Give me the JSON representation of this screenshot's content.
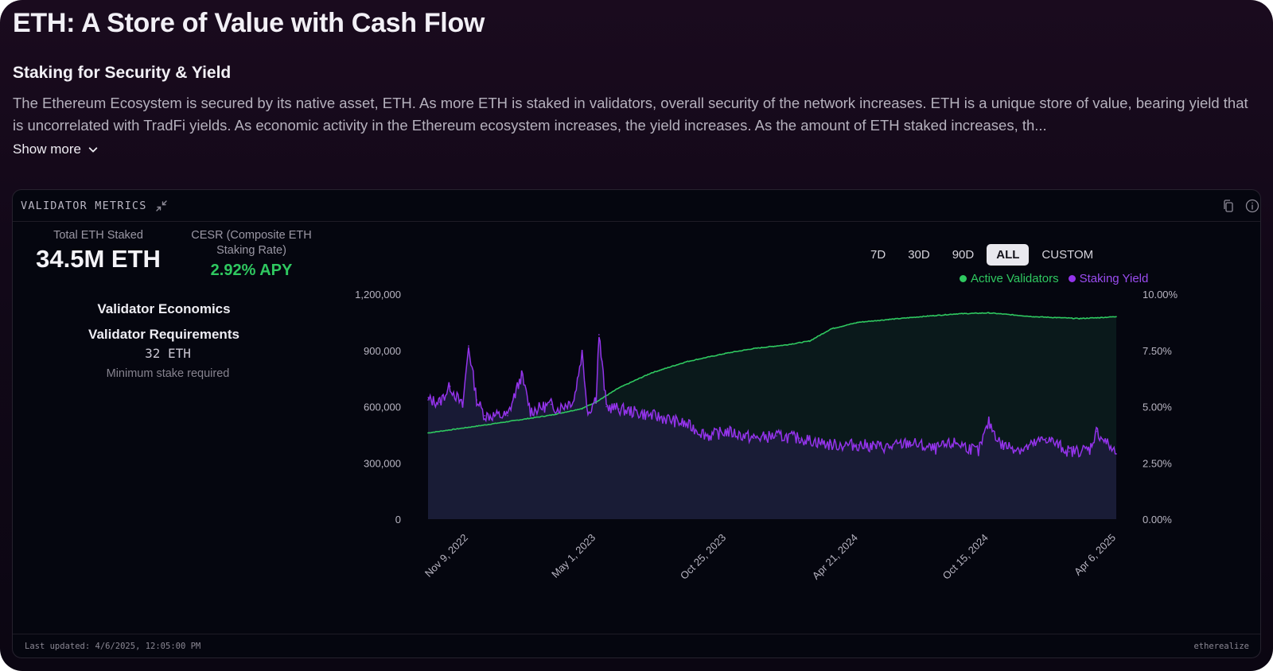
{
  "page": {
    "title": "ETH: A Store of Value with Cash Flow",
    "section_title": "Staking for Security & Yield",
    "description": "The Ethereum Ecosystem is secured by its native asset, ETH. As more ETH is staked in validators, overall security of the network increases. ETH is a unique store of value, bearing yield that is uncorrelated with TradFi yields. As economic activity in the Ethereum ecosystem increases, the yield increases. As the amount of ETH staked increases, th...",
    "show_more_label": "Show more"
  },
  "card": {
    "title": "VALIDATOR METRICS",
    "icons": [
      "collapse-icon",
      "copy-icon",
      "info-icon"
    ]
  },
  "stats": {
    "total_staked_label": "Total ETH Staked",
    "total_staked_value": "34.5M ETH",
    "cesr_label_line1": "CESR (Composite ETH",
    "cesr_label_line2": "Staking Rate)",
    "cesr_value": "2.92% APY"
  },
  "economics": {
    "title": "Validator Economics",
    "requirements_title": "Validator Requirements",
    "requirement_value": "32 ETH",
    "requirement_note": "Minimum stake required"
  },
  "range_buttons": [
    "7D",
    "30D",
    "90D",
    "ALL",
    "CUSTOM"
  ],
  "range_selected": "ALL",
  "footer": {
    "last_updated": "Last updated: 4/6/2025, 12:05:00 PM",
    "brand": "etherealize"
  },
  "colors": {
    "validators": "#2fc860",
    "yield": "#9333ea",
    "validators_fill": "#0b1a1c",
    "yield_fill": "#1b1d3a",
    "axis_text": "#b8b5c2"
  },
  "chart_data": {
    "type": "area",
    "left_axis_ticks": [
      "0",
      "300,000",
      "600,000",
      "900,000",
      "1,200,000"
    ],
    "right_axis_ticks": [
      "0.00%",
      "2.50%",
      "5.00%",
      "7.50%",
      "10.00%"
    ],
    "left_ylim": [
      0,
      1200000
    ],
    "right_ylim": [
      0,
      10
    ],
    "x_tick_labels": [
      "Nov 9, 2022",
      "May 1, 2023",
      "Oct 25, 2023",
      "Apr 21, 2024",
      "Oct 15, 2024",
      "Apr 6, 2025"
    ],
    "x_range": [
      "2022-09-15",
      "2025-04-06"
    ],
    "legend_position": "top-right",
    "series": [
      {
        "name": "Active Validators",
        "axis": "left",
        "x": [
          "2022-09-15",
          "2022-11-09",
          "2023-01-01",
          "2023-03-01",
          "2023-04-12",
          "2023-05-01",
          "2023-06-01",
          "2023-07-15",
          "2023-09-01",
          "2023-10-25",
          "2023-12-01",
          "2024-01-15",
          "2024-02-15",
          "2024-03-15",
          "2024-04-21",
          "2024-06-01",
          "2024-07-15",
          "2024-09-01",
          "2024-10-15",
          "2024-11-15",
          "2024-12-15",
          "2025-01-15",
          "2025-02-15",
          "2025-03-15",
          "2025-04-06"
        ],
        "values": [
          460000,
          490000,
          520000,
          555000,
          590000,
          625000,
          700000,
          780000,
          840000,
          885000,
          910000,
          930000,
          950000,
          1015000,
          1050000,
          1065000,
          1080000,
          1095000,
          1100000,
          1090000,
          1080000,
          1075000,
          1070000,
          1075000,
          1080000
        ]
      },
      {
        "name": "Staking Yield",
        "axis": "right",
        "x": [
          "2022-09-15",
          "2022-10-01",
          "2022-10-15",
          "2022-11-01",
          "2022-11-09",
          "2022-11-20",
          "2022-12-01",
          "2023-01-01",
          "2023-01-20",
          "2023-02-01",
          "2023-03-01",
          "2023-03-10",
          "2023-04-01",
          "2023-04-12",
          "2023-04-20",
          "2023-05-01",
          "2023-05-05",
          "2023-05-15",
          "2023-06-01",
          "2023-07-01",
          "2023-08-01",
          "2023-09-01",
          "2023-10-01",
          "2023-10-25",
          "2023-12-01",
          "2024-01-01",
          "2024-02-01",
          "2024-03-01",
          "2024-03-15",
          "2024-04-21",
          "2024-06-01",
          "2024-07-01",
          "2024-08-01",
          "2024-09-01",
          "2024-10-01",
          "2024-10-15",
          "2024-11-01",
          "2024-12-01",
          "2025-01-01",
          "2025-02-01",
          "2025-03-01",
          "2025-03-10",
          "2025-04-06"
        ],
        "values": [
          5.3,
          5.2,
          5.9,
          5.0,
          7.7,
          5.3,
          4.6,
          4.6,
          6.4,
          4.8,
          5.1,
          4.9,
          5.3,
          7.4,
          4.7,
          5.4,
          8.2,
          5.0,
          4.9,
          4.7,
          4.5,
          4.2,
          3.7,
          3.9,
          3.6,
          3.7,
          3.6,
          3.4,
          3.3,
          3.3,
          3.2,
          3.4,
          3.1,
          3.4,
          3.0,
          4.3,
          3.3,
          3.1,
          3.6,
          3.0,
          3.1,
          3.9,
          2.9
        ]
      }
    ]
  }
}
